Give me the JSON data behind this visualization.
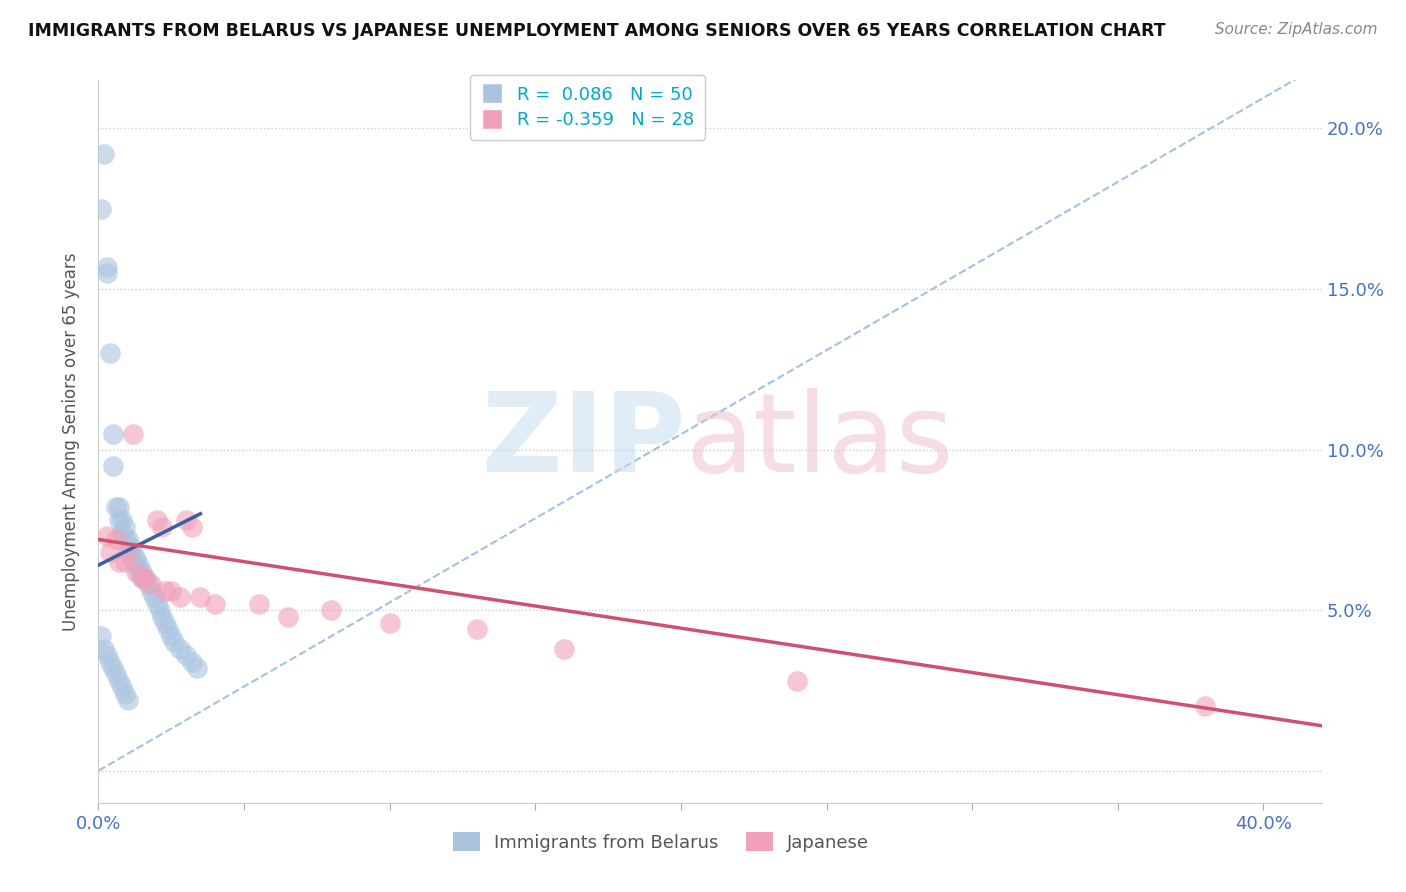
{
  "title": "IMMIGRANTS FROM BELARUS VS JAPANESE UNEMPLOYMENT AMONG SENIORS OVER 65 YEARS CORRELATION CHART",
  "source": "Source: ZipAtlas.com",
  "ylabel": "Unemployment Among Seniors over 65 years",
  "xlim": [
    0.0,
    0.42
  ],
  "ylim": [
    -0.01,
    0.215
  ],
  "yticks": [
    0.0,
    0.05,
    0.1,
    0.15,
    0.2
  ],
  "ytick_labels_right": [
    "",
    "5.0%",
    "10.0%",
    "15.0%",
    "20.0%"
  ],
  "grid_color": "#cccccc",
  "background_color": "#ffffff",
  "blue_color": "#aac4e0",
  "blue_edge_color": "#7aadd0",
  "blue_line_color": "#3a5fa0",
  "pink_color": "#f0a0b8",
  "pink_edge_color": "#e07090",
  "pink_line_color": "#d05070",
  "dashed_line_color": "#99bbdd",
  "legend_r_blue": "R =  0.086",
  "legend_n_blue": "N = 50",
  "legend_r_pink": "R = -0.359",
  "legend_n_pink": "N = 28",
  "blue_points_x": [
    0.001,
    0.002,
    0.003,
    0.003,
    0.004,
    0.005,
    0.005,
    0.006,
    0.007,
    0.007,
    0.008,
    0.008,
    0.009,
    0.009,
    0.01,
    0.011,
    0.011,
    0.012,
    0.012,
    0.013,
    0.013,
    0.014,
    0.014,
    0.015,
    0.015,
    0.016,
    0.017,
    0.018,
    0.019,
    0.02,
    0.021,
    0.022,
    0.023,
    0.024,
    0.025,
    0.026,
    0.028,
    0.03,
    0.032,
    0.034,
    0.001,
    0.002,
    0.003,
    0.004,
    0.005,
    0.006,
    0.007,
    0.008,
    0.009,
    0.01
  ],
  "blue_points_y": [
    0.175,
    0.192,
    0.157,
    0.155,
    0.13,
    0.095,
    0.105,
    0.082,
    0.082,
    0.078,
    0.078,
    0.074,
    0.076,
    0.072,
    0.072,
    0.07,
    0.068,
    0.068,
    0.066,
    0.066,
    0.064,
    0.064,
    0.062,
    0.062,
    0.06,
    0.06,
    0.058,
    0.056,
    0.054,
    0.052,
    0.05,
    0.048,
    0.046,
    0.044,
    0.042,
    0.04,
    0.038,
    0.036,
    0.034,
    0.032,
    0.042,
    0.038,
    0.036,
    0.034,
    0.032,
    0.03,
    0.028,
    0.026,
    0.024,
    0.022
  ],
  "pink_points_x": [
    0.003,
    0.004,
    0.006,
    0.007,
    0.009,
    0.01,
    0.012,
    0.013,
    0.015,
    0.016,
    0.018,
    0.02,
    0.022,
    0.023,
    0.025,
    0.028,
    0.03,
    0.032,
    0.035,
    0.04,
    0.055,
    0.065,
    0.08,
    0.1,
    0.13,
    0.16,
    0.24,
    0.38
  ],
  "pink_points_y": [
    0.073,
    0.068,
    0.072,
    0.065,
    0.065,
    0.068,
    0.105,
    0.062,
    0.06,
    0.06,
    0.058,
    0.078,
    0.076,
    0.056,
    0.056,
    0.054,
    0.078,
    0.076,
    0.054,
    0.052,
    0.052,
    0.048,
    0.05,
    0.046,
    0.044,
    0.038,
    0.028,
    0.02
  ],
  "blue_trend_x": [
    0.0,
    0.035
  ],
  "blue_trend_y": [
    0.064,
    0.08
  ],
  "pink_trend_x": [
    0.0,
    0.42
  ],
  "pink_trend_y": [
    0.072,
    0.014
  ]
}
